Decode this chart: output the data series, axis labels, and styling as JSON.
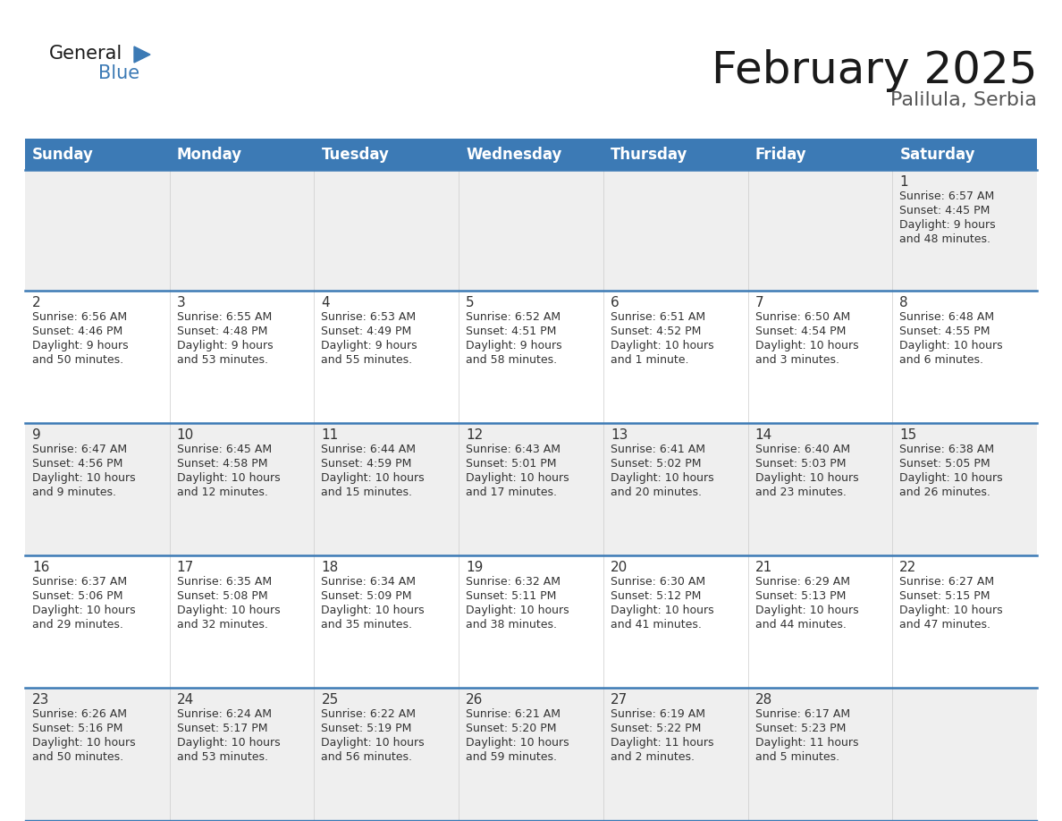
{
  "title": "February 2025",
  "subtitle": "Palilula, Serbia",
  "header_color": "#3c7ab5",
  "header_text_color": "#ffffff",
  "background_color": "#ffffff",
  "cell_bg_even": "#efefef",
  "cell_bg_odd": "#ffffff",
  "text_color": "#333333",
  "line_color": "#3c7ab5",
  "day_headers": [
    "Sunday",
    "Monday",
    "Tuesday",
    "Wednesday",
    "Thursday",
    "Friday",
    "Saturday"
  ],
  "days": [
    {
      "day": 1,
      "col": 6,
      "row": 0,
      "sunrise": "6:57 AM",
      "sunset": "4:45 PM",
      "daylight": "9 hours",
      "daylight2": "and 48 minutes."
    },
    {
      "day": 2,
      "col": 0,
      "row": 1,
      "sunrise": "6:56 AM",
      "sunset": "4:46 PM",
      "daylight": "9 hours",
      "daylight2": "and 50 minutes."
    },
    {
      "day": 3,
      "col": 1,
      "row": 1,
      "sunrise": "6:55 AM",
      "sunset": "4:48 PM",
      "daylight": "9 hours",
      "daylight2": "and 53 minutes."
    },
    {
      "day": 4,
      "col": 2,
      "row": 1,
      "sunrise": "6:53 AM",
      "sunset": "4:49 PM",
      "daylight": "9 hours",
      "daylight2": "and 55 minutes."
    },
    {
      "day": 5,
      "col": 3,
      "row": 1,
      "sunrise": "6:52 AM",
      "sunset": "4:51 PM",
      "daylight": "9 hours",
      "daylight2": "and 58 minutes."
    },
    {
      "day": 6,
      "col": 4,
      "row": 1,
      "sunrise": "6:51 AM",
      "sunset": "4:52 PM",
      "daylight": "10 hours",
      "daylight2": "and 1 minute."
    },
    {
      "day": 7,
      "col": 5,
      "row": 1,
      "sunrise": "6:50 AM",
      "sunset": "4:54 PM",
      "daylight": "10 hours",
      "daylight2": "and 3 minutes."
    },
    {
      "day": 8,
      "col": 6,
      "row": 1,
      "sunrise": "6:48 AM",
      "sunset": "4:55 PM",
      "daylight": "10 hours",
      "daylight2": "and 6 minutes."
    },
    {
      "day": 9,
      "col": 0,
      "row": 2,
      "sunrise": "6:47 AM",
      "sunset": "4:56 PM",
      "daylight": "10 hours",
      "daylight2": "and 9 minutes."
    },
    {
      "day": 10,
      "col": 1,
      "row": 2,
      "sunrise": "6:45 AM",
      "sunset": "4:58 PM",
      "daylight": "10 hours",
      "daylight2": "and 12 minutes."
    },
    {
      "day": 11,
      "col": 2,
      "row": 2,
      "sunrise": "6:44 AM",
      "sunset": "4:59 PM",
      "daylight": "10 hours",
      "daylight2": "and 15 minutes."
    },
    {
      "day": 12,
      "col": 3,
      "row": 2,
      "sunrise": "6:43 AM",
      "sunset": "5:01 PM",
      "daylight": "10 hours",
      "daylight2": "and 17 minutes."
    },
    {
      "day": 13,
      "col": 4,
      "row": 2,
      "sunrise": "6:41 AM",
      "sunset": "5:02 PM",
      "daylight": "10 hours",
      "daylight2": "and 20 minutes."
    },
    {
      "day": 14,
      "col": 5,
      "row": 2,
      "sunrise": "6:40 AM",
      "sunset": "5:03 PM",
      "daylight": "10 hours",
      "daylight2": "and 23 minutes."
    },
    {
      "day": 15,
      "col": 6,
      "row": 2,
      "sunrise": "6:38 AM",
      "sunset": "5:05 PM",
      "daylight": "10 hours",
      "daylight2": "and 26 minutes."
    },
    {
      "day": 16,
      "col": 0,
      "row": 3,
      "sunrise": "6:37 AM",
      "sunset": "5:06 PM",
      "daylight": "10 hours",
      "daylight2": "and 29 minutes."
    },
    {
      "day": 17,
      "col": 1,
      "row": 3,
      "sunrise": "6:35 AM",
      "sunset": "5:08 PM",
      "daylight": "10 hours",
      "daylight2": "and 32 minutes."
    },
    {
      "day": 18,
      "col": 2,
      "row": 3,
      "sunrise": "6:34 AM",
      "sunset": "5:09 PM",
      "daylight": "10 hours",
      "daylight2": "and 35 minutes."
    },
    {
      "day": 19,
      "col": 3,
      "row": 3,
      "sunrise": "6:32 AM",
      "sunset": "5:11 PM",
      "daylight": "10 hours",
      "daylight2": "and 38 minutes."
    },
    {
      "day": 20,
      "col": 4,
      "row": 3,
      "sunrise": "6:30 AM",
      "sunset": "5:12 PM",
      "daylight": "10 hours",
      "daylight2": "and 41 minutes."
    },
    {
      "day": 21,
      "col": 5,
      "row": 3,
      "sunrise": "6:29 AM",
      "sunset": "5:13 PM",
      "daylight": "10 hours",
      "daylight2": "and 44 minutes."
    },
    {
      "day": 22,
      "col": 6,
      "row": 3,
      "sunrise": "6:27 AM",
      "sunset": "5:15 PM",
      "daylight": "10 hours",
      "daylight2": "and 47 minutes."
    },
    {
      "day": 23,
      "col": 0,
      "row": 4,
      "sunrise": "6:26 AM",
      "sunset": "5:16 PM",
      "daylight": "10 hours",
      "daylight2": "and 50 minutes."
    },
    {
      "day": 24,
      "col": 1,
      "row": 4,
      "sunrise": "6:24 AM",
      "sunset": "5:17 PM",
      "daylight": "10 hours",
      "daylight2": "and 53 minutes."
    },
    {
      "day": 25,
      "col": 2,
      "row": 4,
      "sunrise": "6:22 AM",
      "sunset": "5:19 PM",
      "daylight": "10 hours",
      "daylight2": "and 56 minutes."
    },
    {
      "day": 26,
      "col": 3,
      "row": 4,
      "sunrise": "6:21 AM",
      "sunset": "5:20 PM",
      "daylight": "10 hours",
      "daylight2": "and 59 minutes."
    },
    {
      "day": 27,
      "col": 4,
      "row": 4,
      "sunrise": "6:19 AM",
      "sunset": "5:22 PM",
      "daylight": "11 hours",
      "daylight2": "and 2 minutes."
    },
    {
      "day": 28,
      "col": 5,
      "row": 4,
      "sunrise": "6:17 AM",
      "sunset": "5:23 PM",
      "daylight": "11 hours",
      "daylight2": "and 5 minutes."
    }
  ],
  "num_rows": 5,
  "title_fontsize": 36,
  "subtitle_fontsize": 16,
  "header_fontsize": 12,
  "day_num_fontsize": 11,
  "info_fontsize": 9
}
